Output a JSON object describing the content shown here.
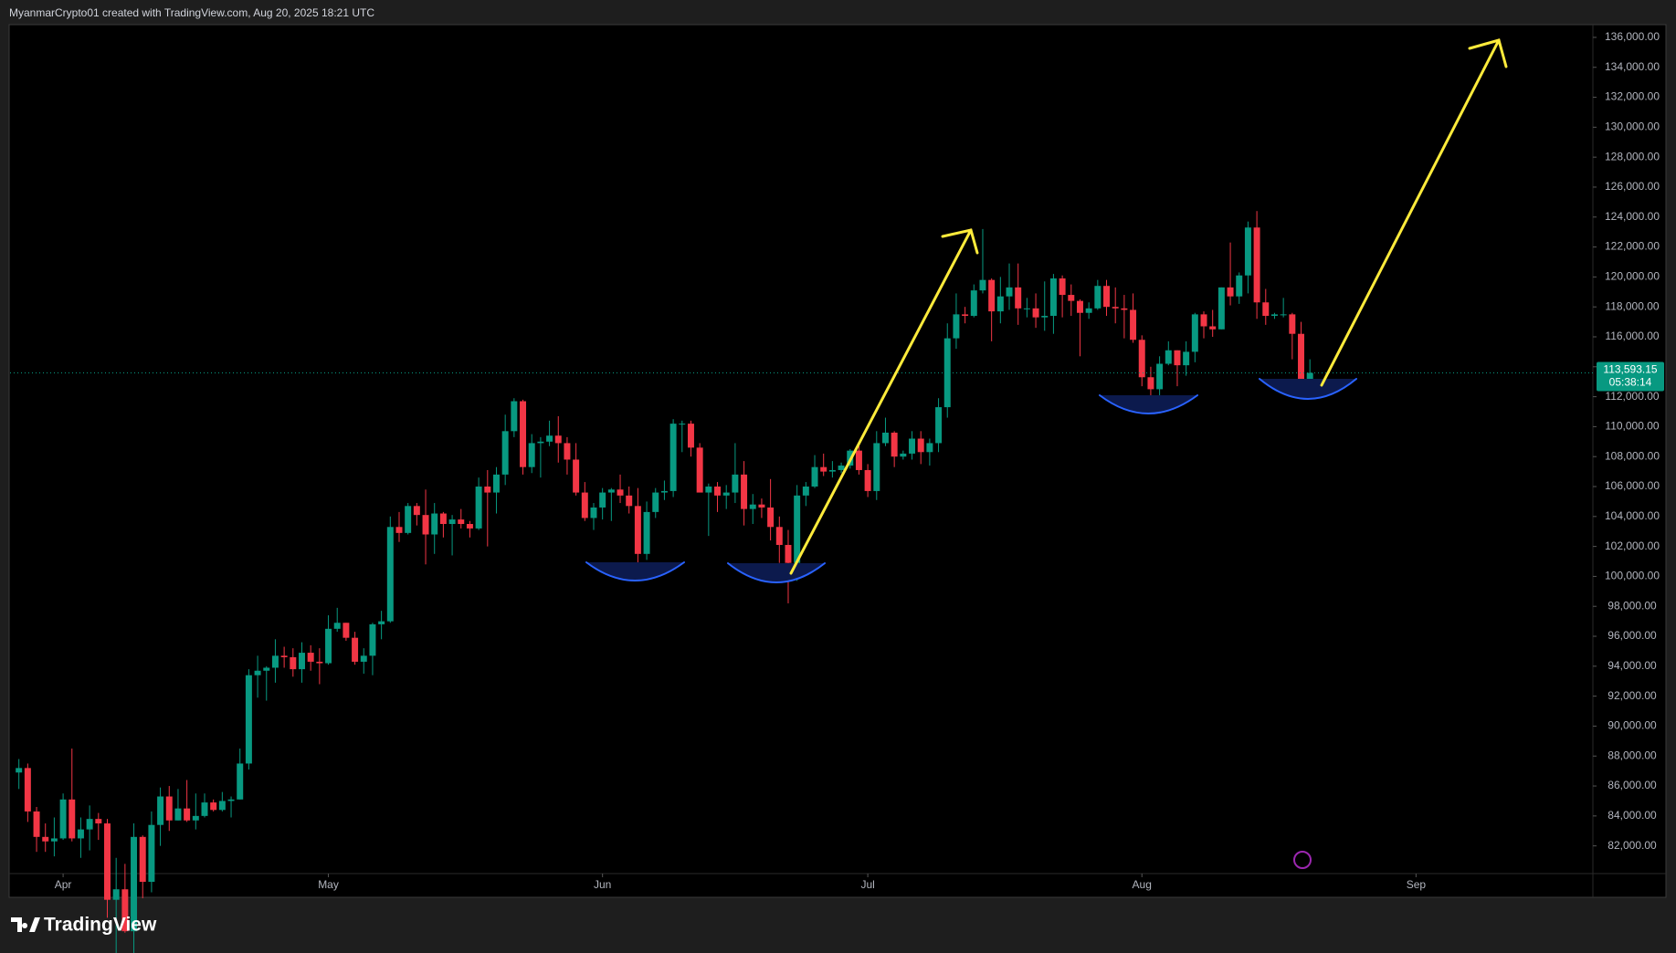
{
  "header": "MyanmarCrypto01 created with TradingView.com, Aug 20, 2025 18:21 UTC",
  "footer": "TradingView",
  "chart_data": {
    "type": "candlestick",
    "colors": {
      "up": "#089981",
      "down": "#f23645"
    },
    "candles": [
      [
        86900,
        87800,
        85800,
        87200
      ],
      [
        87200,
        87500,
        83600,
        84300
      ],
      [
        84300,
        84600,
        81600,
        82600
      ],
      [
        82600,
        83500,
        81600,
        82300
      ],
      [
        82300,
        83900,
        81300,
        82500
      ],
      [
        82500,
        85500,
        82400,
        85100
      ],
      [
        85100,
        88500,
        82300,
        82500
      ],
      [
        82500,
        83900,
        81200,
        83100
      ],
      [
        83100,
        84700,
        81700,
        83800
      ],
      [
        83800,
        84200,
        82400,
        83500
      ],
      [
        83500,
        83800,
        77200,
        78400
      ],
      [
        78400,
        81200,
        74500,
        79100
      ],
      [
        79100,
        80800,
        76200,
        76300
      ],
      [
        76300,
        83500,
        74600,
        82600
      ],
      [
        82600,
        82700,
        78500,
        79600
      ],
      [
        79600,
        84300,
        78900,
        83400
      ],
      [
        83400,
        85900,
        82000,
        85300
      ],
      [
        85300,
        86000,
        83000,
        83700
      ],
      [
        83700,
        85800,
        83700,
        84500
      ],
      [
        84500,
        86400,
        83600,
        83700
      ],
      [
        83700,
        85500,
        83100,
        84000
      ],
      [
        84000,
        85500,
        83900,
        84900
      ],
      [
        84900,
        85100,
        84300,
        84400
      ],
      [
        84400,
        85600,
        84300,
        85000
      ],
      [
        85000,
        85300,
        83900,
        85100
      ],
      [
        85100,
        88500,
        85100,
        87500
      ],
      [
        87500,
        93800,
        87100,
        93400
      ],
      [
        93400,
        94700,
        91900,
        93700
      ],
      [
        93700,
        94000,
        91700,
        93900
      ],
      [
        93900,
        95800,
        92900,
        94700
      ],
      [
        94700,
        95300,
        93900,
        94600
      ],
      [
        94600,
        95200,
        93300,
        93800
      ],
      [
        93800,
        95600,
        92900,
        94900
      ],
      [
        94900,
        95400,
        93700,
        94300
      ],
      [
        94300,
        95200,
        92800,
        94200
      ],
      [
        94200,
        97400,
        94100,
        96500
      ],
      [
        96500,
        97900,
        96300,
        96900
      ],
      [
        96900,
        96900,
        95700,
        95900
      ],
      [
        95900,
        96300,
        94100,
        94300
      ],
      [
        94300,
        95200,
        93500,
        94700
      ],
      [
        94700,
        96900,
        93400,
        96800
      ],
      [
        96800,
        97700,
        95800,
        97000
      ],
      [
        97000,
        104000,
        96900,
        103300
      ],
      [
        103300,
        104300,
        102300,
        102900
      ],
      [
        102900,
        104900,
        102800,
        104700
      ],
      [
        104700,
        104900,
        103400,
        104100
      ],
      [
        104100,
        105800,
        100800,
        102800
      ],
      [
        102800,
        104900,
        101500,
        104200
      ],
      [
        104200,
        104300,
        102600,
        103500
      ],
      [
        103500,
        104100,
        101400,
        103800
      ],
      [
        103800,
        104500,
        103200,
        103500
      ],
      [
        103500,
        103700,
        102600,
        103200
      ],
      [
        103200,
        106600,
        103100,
        106000
      ],
      [
        106000,
        107100,
        102000,
        105600
      ],
      [
        105600,
        107300,
        104200,
        106800
      ],
      [
        106800,
        110800,
        106100,
        109700
      ],
      [
        109700,
        111900,
        109300,
        111700
      ],
      [
        111700,
        111800,
        106800,
        107300
      ],
      [
        107300,
        109500,
        106900,
        108900
      ],
      [
        108900,
        109300,
        106600,
        109000
      ],
      [
        109000,
        110400,
        108700,
        109400
      ],
      [
        109400,
        110700,
        107600,
        108900
      ],
      [
        108900,
        109300,
        106800,
        107800
      ],
      [
        107800,
        108900,
        105400,
        105600
      ],
      [
        105600,
        106300,
        103700,
        103900
      ],
      [
        103900,
        104900,
        103100,
        104600
      ],
      [
        104600,
        105900,
        103800,
        105600
      ],
      [
        105600,
        105900,
        103700,
        105800
      ],
      [
        105800,
        106800,
        104900,
        105400
      ],
      [
        105400,
        106000,
        104200,
        104700
      ],
      [
        104700,
        105900,
        100400,
        101500
      ],
      [
        101500,
        105000,
        101100,
        104300
      ],
      [
        104300,
        105900,
        103900,
        105600
      ],
      [
        105600,
        106400,
        105100,
        105700
      ],
      [
        105700,
        110500,
        105300,
        110200
      ],
      [
        110200,
        110400,
        108300,
        110200
      ],
      [
        110200,
        110400,
        108000,
        108600
      ],
      [
        108600,
        108900,
        105700,
        105600
      ],
      [
        105600,
        106200,
        102700,
        106000
      ],
      [
        106000,
        106300,
        104300,
        105400
      ],
      [
        105400,
        106100,
        104500,
        105600
      ],
      [
        105600,
        108900,
        104900,
        106800
      ],
      [
        106800,
        107700,
        103400,
        104500
      ],
      [
        104500,
        105500,
        103500,
        104800
      ],
      [
        104800,
        105200,
        103900,
        104600
      ],
      [
        104600,
        106500,
        102400,
        103300
      ],
      [
        103300,
        104000,
        100900,
        102100
      ],
      [
        102100,
        103100,
        98200,
        100900
      ],
      [
        100900,
        106100,
        99700,
        105400
      ],
      [
        105400,
        106300,
        104700,
        106000
      ],
      [
        106000,
        108100,
        105900,
        107300
      ],
      [
        107300,
        108200,
        106700,
        107000
      ],
      [
        107000,
        107700,
        106600,
        107100
      ],
      [
        107100,
        107600,
        106900,
        107400
      ],
      [
        107400,
        108500,
        107200,
        108400
      ],
      [
        108400,
        108800,
        106800,
        107100
      ],
      [
        107100,
        107500,
        105300,
        105700
      ],
      [
        105700,
        109700,
        105100,
        108900
      ],
      [
        108900,
        110600,
        108700,
        109600
      ],
      [
        109600,
        109700,
        107300,
        108000
      ],
      [
        108000,
        108400,
        107800,
        108200
      ],
      [
        108200,
        109700,
        107800,
        109200
      ],
      [
        109200,
        109700,
        107500,
        108300
      ],
      [
        108300,
        109200,
        107400,
        108900
      ],
      [
        108900,
        111900,
        108300,
        111300
      ],
      [
        111300,
        116900,
        110600,
        115900
      ],
      [
        115900,
        118900,
        115200,
        117500
      ],
      [
        117500,
        118000,
        116900,
        117400
      ],
      [
        117400,
        119500,
        117300,
        119100
      ],
      [
        119100,
        123200,
        118900,
        119800
      ],
      [
        119800,
        119900,
        115700,
        117700
      ],
      [
        117700,
        120000,
        116900,
        118700
      ],
      [
        118700,
        120900,
        117800,
        119300
      ],
      [
        119300,
        120900,
        116800,
        117900
      ],
      [
        117900,
        118600,
        117300,
        117900
      ],
      [
        117900,
        118900,
        116600,
        117300
      ],
      [
        117300,
        119700,
        116400,
        117400
      ],
      [
        117400,
        120200,
        116200,
        119900
      ],
      [
        119900,
        120100,
        117300,
        118800
      ],
      [
        118800,
        119500,
        117400,
        118400
      ],
      [
        118400,
        118500,
        114700,
        117600
      ],
      [
        117600,
        118300,
        117200,
        117900
      ],
      [
        117900,
        119800,
        117800,
        119400
      ],
      [
        119400,
        119800,
        117400,
        118000
      ],
      [
        118000,
        119300,
        116900,
        117900
      ],
      [
        117900,
        118800,
        115900,
        117800
      ],
      [
        117800,
        118900,
        115600,
        115800
      ],
      [
        115800,
        116100,
        112700,
        113300
      ],
      [
        113300,
        114000,
        112000,
        112500
      ],
      [
        112500,
        114700,
        112100,
        114200
      ],
      [
        114200,
        115700,
        114100,
        115100
      ],
      [
        115100,
        115100,
        112700,
        114100
      ],
      [
        114100,
        115700,
        113400,
        115000
      ],
      [
        115000,
        117600,
        114300,
        117500
      ],
      [
        117500,
        117700,
        115900,
        116700
      ],
      [
        116700,
        117800,
        116000,
        116500
      ],
      [
        116500,
        119300,
        116500,
        119300
      ],
      [
        119300,
        122300,
        118100,
        118700
      ],
      [
        118700,
        120300,
        118200,
        120100
      ],
      [
        120100,
        123700,
        118900,
        123300
      ],
      [
        123300,
        124400,
        117200,
        118300
      ],
      [
        118300,
        119200,
        116800,
        117400
      ],
      [
        117400,
        117600,
        117200,
        117500
      ],
      [
        117500,
        118600,
        117300,
        117500
      ],
      [
        117500,
        117600,
        114500,
        116200
      ],
      [
        116200,
        117000,
        112700,
        112900
      ],
      [
        112900,
        114500,
        112400,
        113593.15
      ]
    ],
    "xlim": [
      -1,
      178
    ],
    "xticks": [
      {
        "value": 5,
        "label": "Apr"
      },
      {
        "value": 35,
        "label": "May"
      },
      {
        "value": 66,
        "label": "Jun"
      },
      {
        "value": 96,
        "label": "Jul"
      },
      {
        "value": 127,
        "label": "Aug"
      },
      {
        "value": 158,
        "label": "Sep"
      }
    ],
    "ylim": [
      80150,
      136850
    ],
    "yticks": [
      {
        "value": 82000,
        "label": "82,000.00"
      },
      {
        "value": 84000,
        "label": "84,000.00"
      },
      {
        "value": 86000,
        "label": "86,000.00"
      },
      {
        "value": 88000,
        "label": "88,000.00"
      },
      {
        "value": 90000,
        "label": "90,000.00"
      },
      {
        "value": 92000,
        "label": "92,000.00"
      },
      {
        "value": 94000,
        "label": "94,000.00"
      },
      {
        "value": 96000,
        "label": "96,000.00"
      },
      {
        "value": 98000,
        "label": "98,000.00"
      },
      {
        "value": 100000,
        "label": "100,000.00"
      },
      {
        "value": 102000,
        "label": "102,000.00"
      },
      {
        "value": 104000,
        "label": "104,000.00"
      },
      {
        "value": 106000,
        "label": "106,000.00"
      },
      {
        "value": 108000,
        "label": "108,000.00"
      },
      {
        "value": 110000,
        "label": "110,000.00"
      },
      {
        "value": 112000,
        "label": "112,000.00"
      },
      {
        "value": 114000,
        "label": "114,000.00"
      },
      {
        "value": 116000,
        "label": "116,000.00"
      },
      {
        "value": 118000,
        "label": "118,000.00"
      },
      {
        "value": 120000,
        "label": "120,000.00"
      },
      {
        "value": 122000,
        "label": "122,000.00"
      },
      {
        "value": 124000,
        "label": "124,000.00"
      },
      {
        "value": 126000,
        "label": "126,000.00"
      },
      {
        "value": 128000,
        "label": "128,000.00"
      },
      {
        "value": 130000,
        "label": "130,000.00"
      },
      {
        "value": 132000,
        "label": "132,000.00"
      },
      {
        "value": 134000,
        "label": "134,000.00"
      },
      {
        "value": 136000,
        "label": "136,000.00"
      }
    ],
    "last_price": {
      "value": 113593.15,
      "label": "113,593.15"
    },
    "countdown": "05:38:14"
  }
}
